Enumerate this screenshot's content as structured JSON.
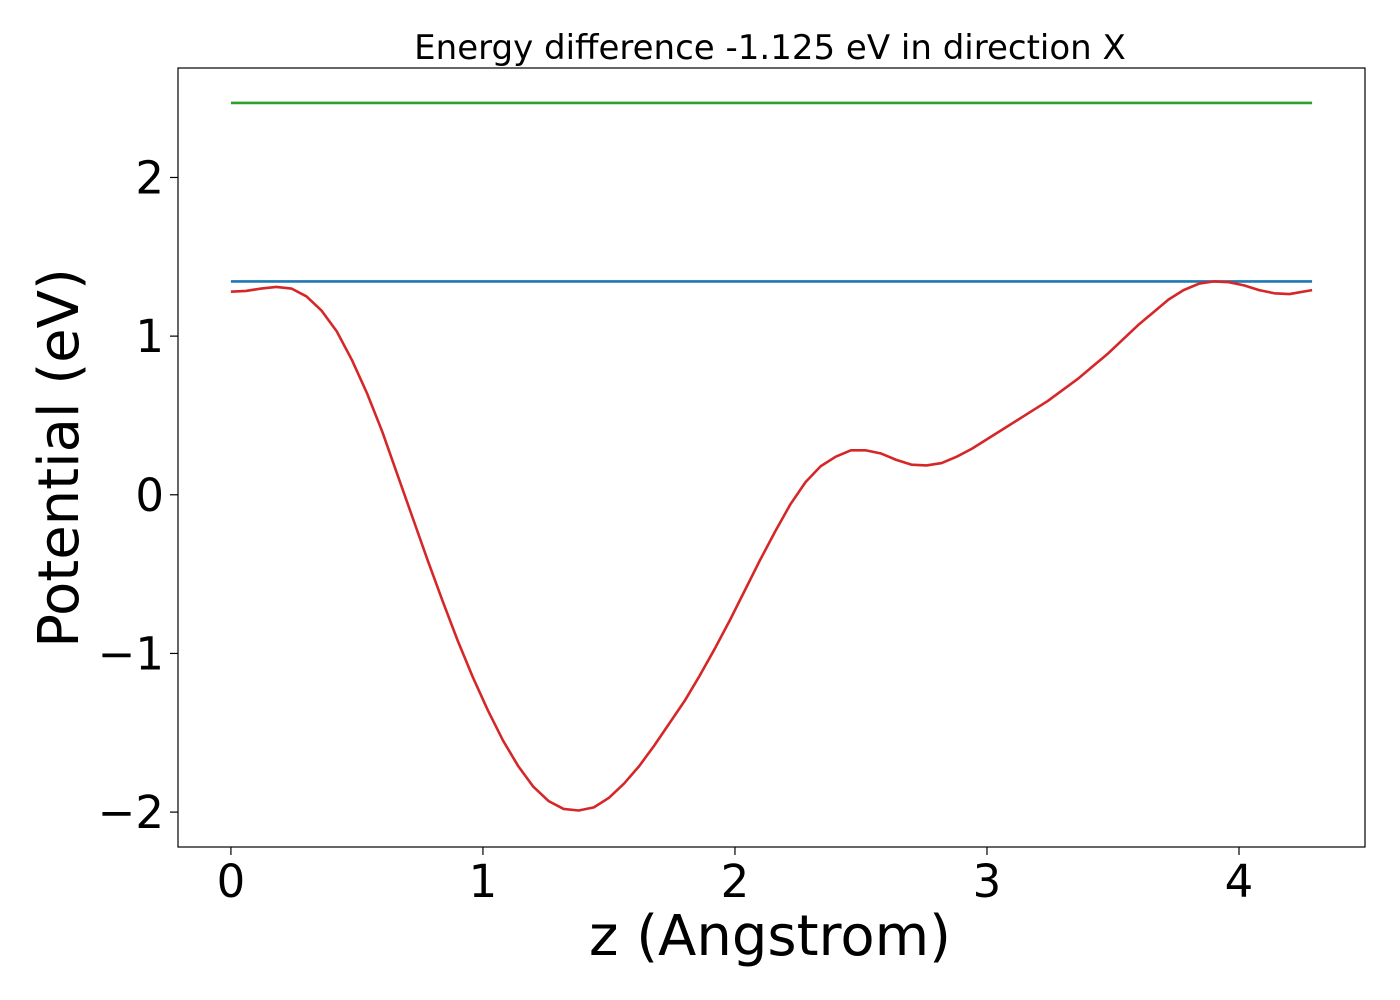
{
  "chart_data": {
    "type": "line",
    "title": "Energy difference -1.125 eV in direction X",
    "xlabel": "z (Angstrom)",
    "ylabel": "Potential (eV)",
    "xlim": [
      -0.21,
      4.5
    ],
    "ylim": [
      -2.22,
      2.69
    ],
    "xticks": [
      0,
      1,
      2,
      3,
      4
    ],
    "xtick_labels": [
      "0",
      "1",
      "2",
      "3",
      "4"
    ],
    "yticks": [
      -2,
      -1,
      0,
      1,
      2
    ],
    "ytick_labels": [
      "−2",
      "−1",
      "0",
      "1",
      "2"
    ],
    "grid": false,
    "series": [
      {
        "color": "#2ca02c",
        "x": [
          0,
          4.29
        ],
        "y": [
          2.47,
          2.47
        ]
      },
      {
        "color": "#1f77b4",
        "x": [
          0,
          4.29
        ],
        "y": [
          1.345,
          1.345
        ]
      },
      {
        "color": "#d62728",
        "x": [
          0,
          0.06,
          0.12,
          0.18,
          0.24,
          0.3,
          0.36,
          0.42,
          0.48,
          0.54,
          0.6,
          0.66,
          0.72,
          0.78,
          0.84,
          0.9,
          0.96,
          1.02,
          1.08,
          1.14,
          1.2,
          1.26,
          1.32,
          1.38,
          1.44,
          1.5,
          1.56,
          1.62,
          1.68,
          1.74,
          1.8,
          1.86,
          1.92,
          1.98,
          2.04,
          2.1,
          2.16,
          2.22,
          2.28,
          2.34,
          2.4,
          2.46,
          2.52,
          2.58,
          2.64,
          2.7,
          2.76,
          2.82,
          2.88,
          2.94,
          3.0,
          3.06,
          3.12,
          3.18,
          3.24,
          3.3,
          3.36,
          3.42,
          3.48,
          3.54,
          3.6,
          3.66,
          3.72,
          3.78,
          3.84,
          3.9,
          3.96,
          4.02,
          4.08,
          4.14,
          4.2,
          4.29
        ],
        "y": [
          1.28,
          1.285,
          1.3,
          1.31,
          1.3,
          1.25,
          1.16,
          1.03,
          0.85,
          0.64,
          0.4,
          0.13,
          -0.14,
          -0.41,
          -0.67,
          -0.92,
          -1.15,
          -1.36,
          -1.55,
          -1.71,
          -1.84,
          -1.93,
          -1.98,
          -1.99,
          -1.97,
          -1.91,
          -1.82,
          -1.71,
          -1.58,
          -1.44,
          -1.3,
          -1.14,
          -0.97,
          -0.79,
          -0.6,
          -0.41,
          -0.23,
          -0.06,
          0.08,
          0.18,
          0.24,
          0.28,
          0.28,
          0.26,
          0.22,
          0.19,
          0.185,
          0.2,
          0.24,
          0.29,
          0.35,
          0.41,
          0.47,
          0.53,
          0.59,
          0.66,
          0.73,
          0.81,
          0.89,
          0.98,
          1.07,
          1.15,
          1.23,
          1.29,
          1.33,
          1.345,
          1.34,
          1.32,
          1.29,
          1.27,
          1.265,
          1.29
        ]
      }
    ]
  }
}
